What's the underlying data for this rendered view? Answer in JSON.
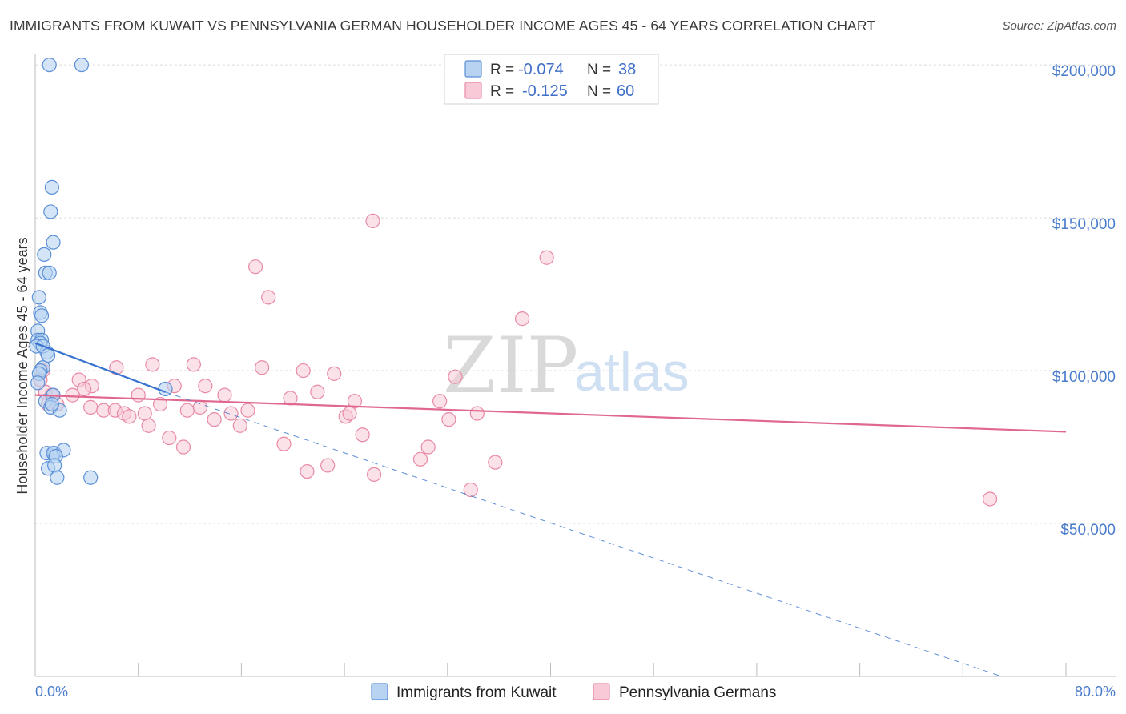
{
  "title": "IMMIGRANTS FROM KUWAIT VS PENNSYLVANIA GERMAN HOUSEHOLDER INCOME AGES 45 - 64 YEARS CORRELATION CHART",
  "source": "Source: ZipAtlas.com",
  "watermark": {
    "zip": "ZIP",
    "atlas": "atlas"
  },
  "colors": {
    "kuwait_fill": "#b8d3f2",
    "kuwait_stroke": "#5b8fd6",
    "kuwait_line": "#3873d0",
    "penn_fill": "#f8c9d6",
    "penn_stroke": "#e88aa5",
    "penn_line": "#e0678f",
    "grid": "#dcdcdc",
    "axis_text": "#4a7ccc"
  },
  "legend": {
    "rows": [
      {
        "r_label": "R = ",
        "r_value": "-0.074",
        "n_label": "N = ",
        "n_value": "38",
        "series": "kuwait"
      },
      {
        "r_label": "R = ",
        "r_value": "-0.125",
        "n_label": "N = ",
        "n_value": "60",
        "series": "penn"
      }
    ]
  },
  "bottom_legend": {
    "kuwait": "Immigrants from Kuwait",
    "penn": "Pennsylvania Germans"
  },
  "chart_data": {
    "type": "scatter",
    "title": "IMMIGRANTS FROM KUWAIT VS PENNSYLVANIA GERMAN HOUSEHOLDER INCOME AGES 45 - 64 YEARS CORRELATION CHART",
    "xlabel": "",
    "ylabel": "Householder Income Ages 45 - 64 years",
    "xlim": [
      0,
      80
    ],
    "ylim": [
      0,
      205000
    ],
    "x_tick_labels": {
      "left": "0.0%",
      "right": "80.0%"
    },
    "y_ticks": [
      {
        "value": 50000,
        "label": "$50,000"
      },
      {
        "value": 100000,
        "label": "$100,000"
      },
      {
        "value": 150000,
        "label": "$150,000"
      },
      {
        "value": 200000,
        "label": "$200,000"
      }
    ],
    "series": [
      {
        "name": "Immigrants from Kuwait",
        "key": "kuwait",
        "points": [
          [
            1.1,
            200000
          ],
          [
            3.6,
            200000
          ],
          [
            1.3,
            160000
          ],
          [
            1.2,
            152000
          ],
          [
            1.4,
            142000
          ],
          [
            0.7,
            138000
          ],
          [
            0.8,
            132000
          ],
          [
            1.1,
            132000
          ],
          [
            0.3,
            124000
          ],
          [
            0.4,
            119000
          ],
          [
            0.5,
            118000
          ],
          [
            0.2,
            113000
          ],
          [
            0.2,
            110000
          ],
          [
            0.5,
            110000
          ],
          [
            0.4,
            109000
          ],
          [
            0.1,
            108000
          ],
          [
            0.9,
            106000
          ],
          [
            0.6,
            101000
          ],
          [
            0.4,
            100000
          ],
          [
            0.3,
            99000
          ],
          [
            0.2,
            96000
          ],
          [
            1.4,
            92000
          ],
          [
            0.8,
            90000
          ],
          [
            1.2,
            88000
          ],
          [
            1.9,
            87000
          ],
          [
            0.9,
            73000
          ],
          [
            1.5,
            73000
          ],
          [
            1.4,
            73000
          ],
          [
            2.2,
            74000
          ],
          [
            1.6,
            72000
          ],
          [
            1.0,
            68000
          ],
          [
            1.5,
            69000
          ],
          [
            1.7,
            65000
          ],
          [
            4.3,
            65000
          ],
          [
            10.1,
            94000
          ],
          [
            1.3,
            89000
          ],
          [
            0.6,
            108000
          ],
          [
            1.0,
            105000
          ]
        ],
        "trend": {
          "x": [
            0.0,
            10.1
          ],
          "y": [
            109000,
            93000
          ]
        },
        "trend_extension": {
          "x": [
            10.1,
            75.0
          ],
          "y": [
            93000,
            0
          ]
        }
      },
      {
        "name": "Pennsylvania Germans",
        "key": "penn",
        "points": [
          [
            0.4,
            97000
          ],
          [
            0.8,
            93000
          ],
          [
            1.3,
            92000
          ],
          [
            1.0,
            89000
          ],
          [
            1.7,
            89000
          ],
          [
            2.9,
            92000
          ],
          [
            3.4,
            97000
          ],
          [
            4.4,
            95000
          ],
          [
            3.8,
            94000
          ],
          [
            4.3,
            88000
          ],
          [
            5.3,
            87000
          ],
          [
            6.2,
            87000
          ],
          [
            6.3,
            101000
          ],
          [
            6.9,
            86000
          ],
          [
            7.3,
            85000
          ],
          [
            8.0,
            92000
          ],
          [
            8.5,
            86000
          ],
          [
            8.8,
            82000
          ],
          [
            9.1,
            102000
          ],
          [
            9.7,
            89000
          ],
          [
            10.4,
            78000
          ],
          [
            10.8,
            95000
          ],
          [
            11.5,
            75000
          ],
          [
            11.8,
            87000
          ],
          [
            12.3,
            102000
          ],
          [
            12.8,
            88000
          ],
          [
            13.2,
            95000
          ],
          [
            13.9,
            84000
          ],
          [
            14.7,
            92000
          ],
          [
            15.2,
            86000
          ],
          [
            15.9,
            82000
          ],
          [
            16.5,
            87000
          ],
          [
            17.1,
            134000
          ],
          [
            17.6,
            101000
          ],
          [
            18.1,
            124000
          ],
          [
            19.3,
            76000
          ],
          [
            19.8,
            91000
          ],
          [
            20.8,
            100000
          ],
          [
            21.1,
            67000
          ],
          [
            21.9,
            93000
          ],
          [
            22.7,
            69000
          ],
          [
            23.2,
            99000
          ],
          [
            24.1,
            85000
          ],
          [
            24.4,
            86000
          ],
          [
            24.8,
            90000
          ],
          [
            25.4,
            79000
          ],
          [
            26.2,
            149000
          ],
          [
            26.3,
            66000
          ],
          [
            29.9,
            71000
          ],
          [
            30.5,
            75000
          ],
          [
            31.4,
            90000
          ],
          [
            32.1,
            84000
          ],
          [
            32.6,
            98000
          ],
          [
            33.8,
            61000
          ],
          [
            34.3,
            86000
          ],
          [
            35.7,
            70000
          ],
          [
            37.8,
            117000
          ],
          [
            39.7,
            137000
          ],
          [
            74.1,
            58000
          ],
          [
            0.6,
            100000
          ]
        ],
        "trend": {
          "x": [
            0.0,
            80.0
          ],
          "y": [
            92000,
            80000
          ]
        }
      }
    ]
  }
}
